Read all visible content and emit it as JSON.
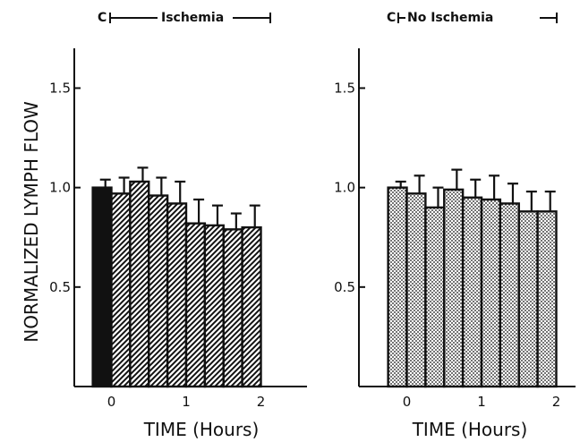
{
  "figure": {
    "ylabel": "NORMALIZED LYMPH FLOW",
    "colors": {
      "ink": "#111111",
      "background": "#ffffff"
    }
  },
  "chart_data": [
    {
      "type": "bar",
      "header": {
        "control": "C",
        "period": "Ischemia"
      },
      "xlabel": "TIME (Hours)",
      "ylabel": "NORMALIZED LYMPH FLOW",
      "ylim": [
        0,
        1.7
      ],
      "yticks": [
        "0.5",
        "1.0",
        "1.5"
      ],
      "xlim": [
        -0.333,
        2.167
      ],
      "xticks": [
        "0",
        "1",
        "2"
      ],
      "bar_width_hours": 0.25,
      "series": [
        {
          "x": [
            -0.125,
            0.125,
            0.375,
            0.625,
            0.875,
            1.125,
            1.375,
            1.625,
            1.875
          ],
          "values": [
            1.0,
            0.97,
            1.03,
            0.96,
            0.92,
            0.82,
            0.81,
            0.79,
            0.8
          ],
          "errors": [
            0.04,
            0.08,
            0.07,
            0.09,
            0.11,
            0.12,
            0.1,
            0.08,
            0.11
          ],
          "fills": [
            "solid",
            "hatch",
            "hatch",
            "hatch",
            "hatch",
            "hatch",
            "hatch",
            "hatch",
            "hatch"
          ]
        }
      ],
      "grid": false
    },
    {
      "type": "bar",
      "header": {
        "control": "C",
        "period": "No Ischemia"
      },
      "xlabel": "TIME (Hours)",
      "ylabel": "",
      "ylim": [
        0,
        1.7
      ],
      "yticks": [
        "0.5",
        "1.0",
        "1.5"
      ],
      "xlim": [
        -0.333,
        2.167
      ],
      "xticks": [
        "0",
        "1",
        "2"
      ],
      "bar_width_hours": 0.25,
      "series": [
        {
          "x": [
            -0.125,
            0.125,
            0.375,
            0.625,
            0.875,
            1.125,
            1.375,
            1.625,
            1.875
          ],
          "values": [
            1.0,
            0.97,
            0.9,
            0.99,
            0.95,
            0.94,
            0.92,
            0.88,
            0.88
          ],
          "errors": [
            0.03,
            0.09,
            0.1,
            0.1,
            0.09,
            0.12,
            0.1,
            0.1,
            0.1
          ],
          "fills": [
            "dots",
            "dots",
            "dots",
            "dots",
            "dots",
            "dots",
            "dots",
            "dots",
            "dots"
          ]
        }
      ],
      "grid": false
    }
  ]
}
